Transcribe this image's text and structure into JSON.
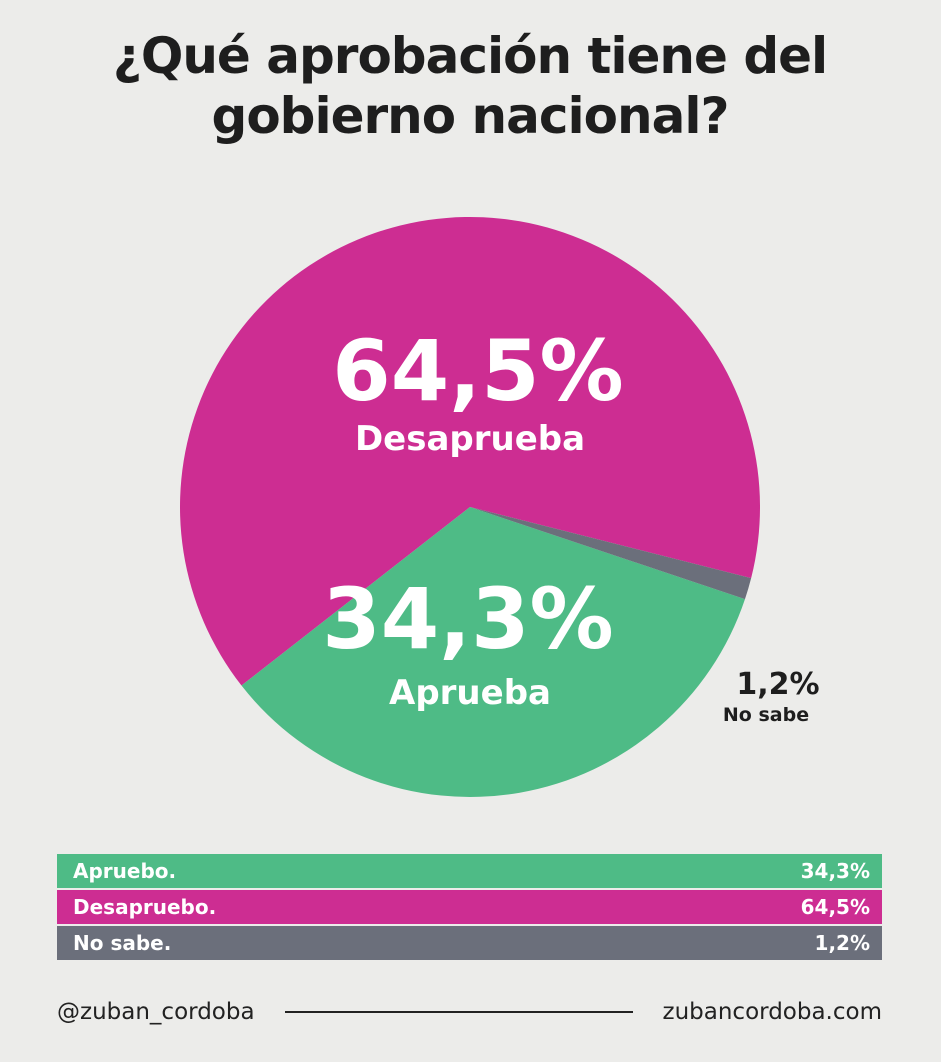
{
  "title": "¿Qué aprobación tiene del gobierno nacional?",
  "colors": {
    "aprueba": "#4ebb86",
    "desaprueba": "#cd2d92",
    "no_sabe": "#6b6f7b",
    "background": "#ececea",
    "text_dark": "#1e1e1e"
  },
  "chart_data": {
    "type": "pie",
    "title": "¿Qué aprobación tiene del gobierno nacional?",
    "slices": [
      {
        "key": "desaprueba",
        "value": 64.5,
        "value_label": "64,5%",
        "label": "Desaprueba"
      },
      {
        "key": "aprueba",
        "value": 34.3,
        "value_label": "34,3%",
        "label": "Aprueba"
      },
      {
        "key": "no_sabe",
        "value": 1.2,
        "value_label": "1,2%",
        "label": "No sabe"
      }
    ]
  },
  "table": {
    "rows": [
      {
        "label": "Apruebo.",
        "value": "34,3%",
        "key": "aprueba"
      },
      {
        "label": "Desapruebo.",
        "value": "64,5%",
        "key": "desaprueba"
      },
      {
        "label": "No sabe.",
        "value": "1,2%",
        "key": "no_sabe"
      }
    ]
  },
  "footer": {
    "handle": "@zuban_cordoba",
    "website": "zubancordoba.com"
  }
}
